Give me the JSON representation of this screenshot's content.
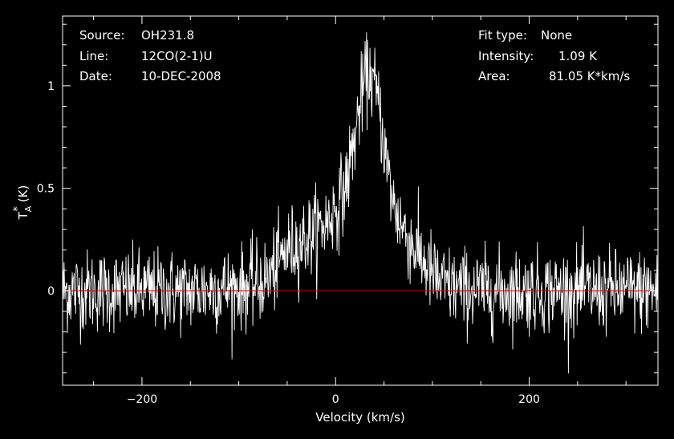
{
  "header": {
    "source_label": "Source:",
    "source_value": "OH231.8",
    "line_label": "Line:",
    "line_value": "12CO(2-1)U",
    "date_label": "Date:",
    "date_value": "10-DEC-2008",
    "fit_label": "Fit type:",
    "fit_value": "None",
    "intensity_label": "Intensity:",
    "intensity_value": "1.09 K",
    "area_label": "Area:",
    "area_value": "81.05 K*km/s"
  },
  "colors": {
    "background": "#000000",
    "spectrum": "#ffffff",
    "baseline": "#cc0000",
    "axes": "#ffffff"
  },
  "chart_data": {
    "type": "line",
    "xlabel": "Velocity (km/s)",
    "ylabel_base": "T",
    "ylabel_sub": "A",
    "ylabel_sup": "*",
    "ylabel_unit": "(K)",
    "xlim": [
      -282,
      333
    ],
    "ylim": [
      -0.46,
      1.34
    ],
    "xticks": [
      -200,
      0,
      200
    ],
    "xtick_labels": [
      "−200",
      "0",
      "200"
    ],
    "yticks": [
      0,
      0.5,
      1
    ],
    "ytick_labels": [
      "0",
      "0.5",
      "1"
    ],
    "baseline_y": 0,
    "grid": false,
    "series": [
      {
        "profile": {
          "x": [
            -282,
            -150,
            -90,
            -70,
            -50,
            -35,
            -25,
            -10,
            0,
            10,
            20,
            25,
            30,
            35,
            40,
            45,
            50,
            55,
            60,
            70,
            80,
            90,
            100,
            110,
            130,
            150,
            200,
            333
          ],
          "y": [
            0,
            0,
            0.02,
            0.06,
            0.2,
            0.24,
            0.28,
            0.33,
            0.4,
            0.5,
            0.75,
            0.9,
            1.02,
            1.06,
            1.0,
            0.9,
            0.72,
            0.55,
            0.42,
            0.3,
            0.22,
            0.15,
            0.08,
            0.03,
            0.01,
            0,
            0,
            0
          ]
        },
        "noise_rms": 0.1,
        "channel_width_kms": 0.5,
        "peak": {
          "x": 35,
          "y": 1.09
        }
      }
    ]
  }
}
